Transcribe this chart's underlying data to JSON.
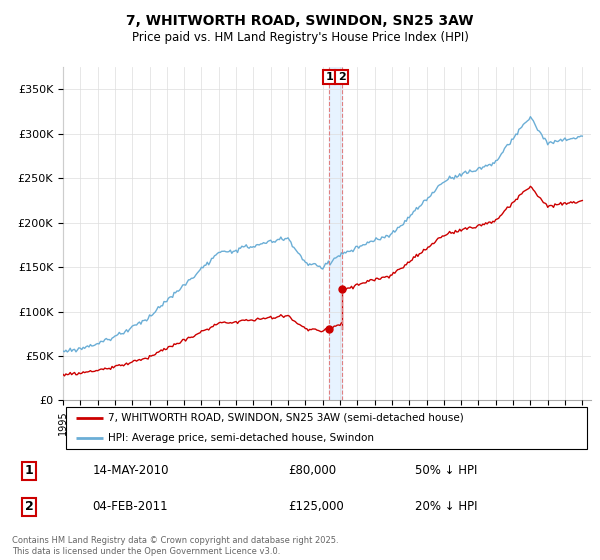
{
  "title": "7, WHITWORTH ROAD, SWINDON, SN25 3AW",
  "subtitle": "Price paid vs. HM Land Registry's House Price Index (HPI)",
  "ylim": [
    0,
    375000
  ],
  "yticks": [
    0,
    50000,
    100000,
    150000,
    200000,
    250000,
    300000,
    350000
  ],
  "ytick_labels": [
    "£0",
    "£50K",
    "£100K",
    "£150K",
    "£200K",
    "£250K",
    "£300K",
    "£350K"
  ],
  "hpi_color": "#6baed6",
  "price_color": "#cc0000",
  "vline_color": "#e08080",
  "vband_color": "#ddeeff",
  "annotation_box_color": "#cc0000",
  "legend_label_price": "7, WHITWORTH ROAD, SWINDON, SN25 3AW (semi-detached house)",
  "legend_label_hpi": "HPI: Average price, semi-detached house, Swindon",
  "transaction1_label": "1",
  "transaction1_date": "14-MAY-2010",
  "transaction1_price": "£80,000",
  "transaction1_hpi": "50% ↓ HPI",
  "transaction2_label": "2",
  "transaction2_date": "04-FEB-2011",
  "transaction2_price": "£125,000",
  "transaction2_hpi": "20% ↓ HPI",
  "footer": "Contains HM Land Registry data © Crown copyright and database right 2025.\nThis data is licensed under the Open Government Licence v3.0.",
  "background_color": "#ffffff",
  "plot_background": "#ffffff",
  "grid_color": "#dddddd",
  "t1_year": 2010.37,
  "t2_year": 2011.09,
  "t1_price": 80000,
  "t2_price": 125000
}
